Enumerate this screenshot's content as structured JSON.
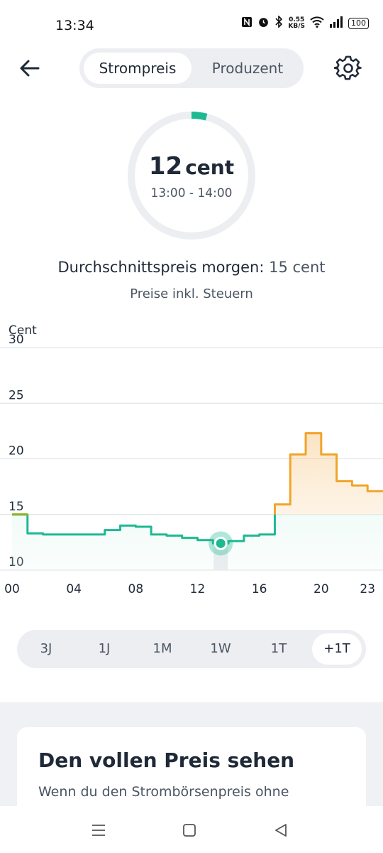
{
  "status_bar": {
    "time": "13:34",
    "net_speed_value": "0.55",
    "net_speed_unit": "KB/S",
    "battery": "100"
  },
  "header": {
    "tabs": [
      {
        "label": "Strompreis",
        "active": true
      },
      {
        "label": "Produzent",
        "active": false
      }
    ]
  },
  "current_price": {
    "value": "12",
    "unit": "cent",
    "time_range": "13:00 - 14:00",
    "gauge_fraction": 0.04
  },
  "summary": {
    "avg_label": "Durchschnittspreis morgen:",
    "avg_value": "15 cent",
    "tax_note": "Preise inkl. Steuern"
  },
  "chart_data": {
    "type": "line",
    "ylabel": "Cent",
    "ylim": [
      10,
      30
    ],
    "yticks": [
      10,
      15,
      20,
      25,
      30
    ],
    "xlim": [
      0,
      24
    ],
    "xticks": [
      {
        "value": 0,
        "label": "00"
      },
      {
        "value": 4,
        "label": "04"
      },
      {
        "value": 8,
        "label": "08"
      },
      {
        "value": 12,
        "label": "12"
      },
      {
        "value": 16,
        "label": "16"
      },
      {
        "value": 20,
        "label": "20"
      },
      {
        "value": 23,
        "label": "23"
      }
    ],
    "grid": true,
    "series": [
      {
        "step": true,
        "x": [
          0,
          1,
          2,
          3,
          4,
          5,
          6,
          7,
          8,
          9,
          10,
          11,
          12,
          13,
          14,
          15,
          16,
          17,
          18,
          19,
          20,
          21,
          22,
          23
        ],
        "values": [
          15.0,
          13.3,
          13.2,
          13.2,
          13.2,
          13.2,
          13.6,
          14.0,
          13.9,
          13.2,
          13.1,
          12.9,
          12.7,
          12.4,
          12.6,
          13.1,
          13.2,
          15.9,
          20.4,
          22.3,
          20.4,
          18.0,
          17.6,
          17.1
        ]
      }
    ],
    "threshold": 15,
    "colors": {
      "low": "#1db992",
      "high": "#f0a42a",
      "start": "#8ab42a"
    },
    "current_hour": 13
  },
  "range_selector": {
    "items": [
      {
        "label": "3J",
        "active": false
      },
      {
        "label": "1J",
        "active": false
      },
      {
        "label": "1M",
        "active": false
      },
      {
        "label": "1W",
        "active": false
      },
      {
        "label": "1T",
        "active": false
      },
      {
        "label": "+1T",
        "active": true
      }
    ]
  },
  "promo": {
    "title": "Den vollen Preis sehen",
    "text": "Wenn du den Strombörsenpreis ohne"
  },
  "icons": {
    "back": "arrow-left-icon",
    "settings": "gear-icon",
    "nav_recent": "menu-icon",
    "nav_home": "square-icon",
    "nav_back": "triangle-back-icon"
  },
  "accent_color": "#1db992"
}
